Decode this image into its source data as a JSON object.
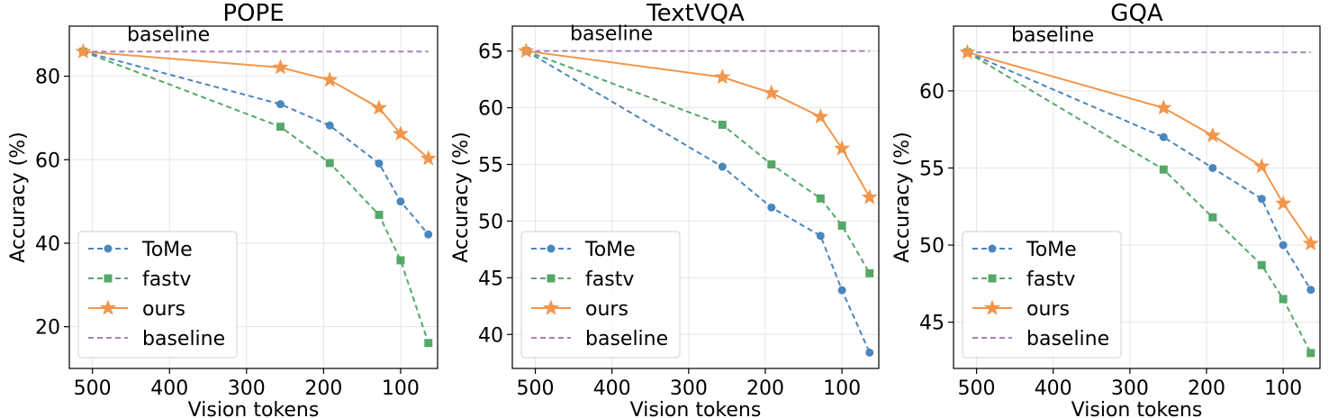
{
  "chart_data": [
    {
      "type": "line",
      "title": "POPE",
      "xlabel": "Vision tokens",
      "ylabel": "Accuracy (%)",
      "xlim": [
        530,
        52
      ],
      "ylim": [
        10,
        92
      ],
      "xticks": [
        500,
        400,
        300,
        200,
        100
      ],
      "yticks": [
        20,
        40,
        60,
        80
      ],
      "grid": true,
      "legend_position": "lower-left",
      "annotation": "baseline",
      "series": [
        {
          "name": "ToMe",
          "x": [
            512,
            256,
            192,
            128,
            100,
            64
          ],
          "y": [
            85.9,
            73.3,
            68.2,
            59.1,
            50.0,
            42.1
          ]
        },
        {
          "name": "fastv",
          "x": [
            512,
            256,
            192,
            128,
            100,
            64
          ],
          "y": [
            85.9,
            67.9,
            59.2,
            46.8,
            35.9,
            16.1
          ]
        },
        {
          "name": "ours",
          "x": [
            512,
            256,
            192,
            128,
            100,
            64
          ],
          "y": [
            85.9,
            82.1,
            79.1,
            72.4,
            66.2,
            60.3
          ]
        },
        {
          "name": "baseline",
          "x": [
            512,
            64
          ],
          "y": [
            85.9,
            85.9
          ]
        }
      ]
    },
    {
      "type": "line",
      "title": "TextVQA",
      "xlabel": "Vision tokens",
      "ylabel": "Accuracy (%)",
      "xlim": [
        530,
        52
      ],
      "ylim": [
        37,
        67.2
      ],
      "xticks": [
        500,
        400,
        300,
        200,
        100
      ],
      "yticks": [
        40,
        45,
        50,
        55,
        60,
        65
      ],
      "grid": true,
      "legend_position": "lower-left",
      "annotation": "baseline",
      "series": [
        {
          "name": "ToMe",
          "x": [
            512,
            256,
            192,
            128,
            100,
            64
          ],
          "y": [
            65.0,
            54.8,
            51.2,
            48.7,
            43.9,
            38.4
          ]
        },
        {
          "name": "fastv",
          "x": [
            512,
            256,
            192,
            128,
            100,
            64
          ],
          "y": [
            65.0,
            58.5,
            55.0,
            52.0,
            49.6,
            45.4
          ]
        },
        {
          "name": "ours",
          "x": [
            512,
            256,
            192,
            128,
            100,
            64
          ],
          "y": [
            65.0,
            62.7,
            61.3,
            59.2,
            56.4,
            52.1
          ]
        },
        {
          "name": "baseline",
          "x": [
            512,
            64
          ],
          "y": [
            65.0,
            65.0
          ]
        }
      ]
    },
    {
      "type": "line",
      "title": "GQA",
      "xlabel": "Vision tokens",
      "ylabel": "Accuracy (%)",
      "xlim": [
        530,
        52
      ],
      "ylim": [
        42,
        64.2
      ],
      "xticks": [
        500,
        400,
        300,
        200,
        100
      ],
      "yticks": [
        45,
        50,
        55,
        60
      ],
      "grid": true,
      "legend_position": "lower-left",
      "annotation": "baseline",
      "series": [
        {
          "name": "ToMe",
          "x": [
            512,
            256,
            192,
            128,
            100,
            64
          ],
          "y": [
            62.5,
            57.0,
            55.0,
            53.0,
            50.0,
            47.1
          ]
        },
        {
          "name": "fastv",
          "x": [
            512,
            256,
            192,
            128,
            100,
            64
          ],
          "y": [
            62.5,
            54.9,
            51.8,
            48.7,
            46.5,
            43.0
          ]
        },
        {
          "name": "ours",
          "x": [
            512,
            256,
            192,
            128,
            100,
            64
          ],
          "y": [
            62.5,
            58.9,
            57.1,
            55.1,
            52.7,
            50.1
          ]
        },
        {
          "name": "baseline",
          "x": [
            512,
            64
          ],
          "y": [
            62.5,
            62.5
          ]
        }
      ]
    }
  ],
  "colors": {
    "ToMe": "#4b86bd",
    "fastv": "#55a868",
    "ours": "#f2964b",
    "baseline": "#a383bd"
  }
}
